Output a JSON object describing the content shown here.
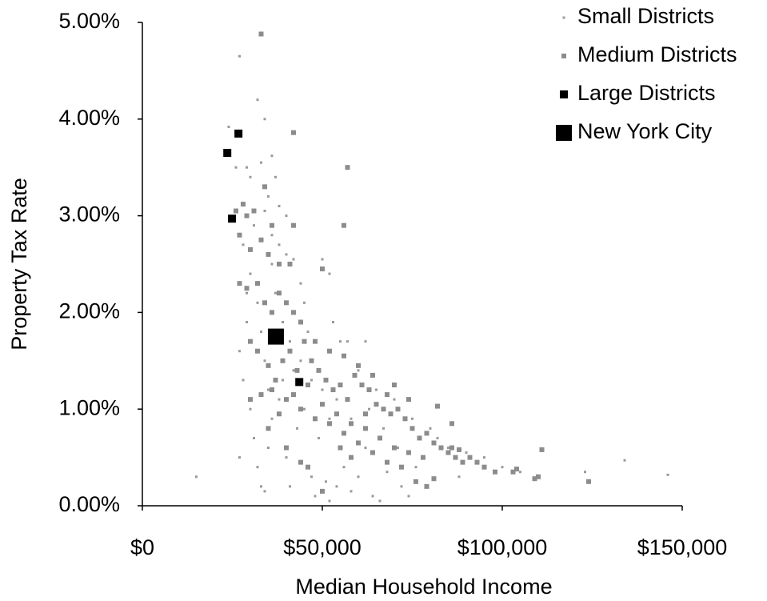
{
  "chart_data": {
    "type": "scatter",
    "x_label": "Median Household Income",
    "y_label": "Property Tax Rate",
    "xlim": [
      0,
      150000
    ],
    "xticks": [
      {
        "value": 0,
        "label": "$0"
      },
      {
        "value": 50000,
        "label": "$50,000"
      },
      {
        "value": 100000,
        "label": "$100,000"
      },
      {
        "value": 150000,
        "label": "$150,000"
      }
    ],
    "ylim": [
      0,
      5
    ],
    "yticks": [
      {
        "value": 0,
        "label": "0.00%"
      },
      {
        "value": 1,
        "label": "1.00%"
      },
      {
        "value": 2,
        "label": "2.00%"
      },
      {
        "value": 3,
        "label": "3.00%"
      },
      {
        "value": 4,
        "label": "4.00%"
      },
      {
        "value": 5,
        "label": "5.00%"
      }
    ],
    "legend": "upper right",
    "series": [
      {
        "name": "Small Districts",
        "color": "#999999",
        "x": [
          15000,
          27000,
          32000,
          24000,
          26000,
          29000,
          30000,
          33000,
          36000,
          37000,
          35000,
          34000,
          31000,
          36000,
          38000,
          40000,
          42000,
          44000,
          45000,
          50000,
          52000,
          55000,
          53000,
          57000,
          62000,
          60000,
          65000,
          70000,
          75000,
          80000,
          85000,
          90000,
          100000,
          105000,
          110000,
          123000,
          134000,
          146000,
          27000,
          29000,
          27000,
          28000,
          30000,
          31000,
          32000,
          33000,
          34000,
          35000,
          36000,
          38000,
          39000,
          40000,
          41000,
          43000,
          44000,
          46000,
          47000,
          48000,
          49000,
          51000,
          52000,
          54000,
          56000,
          58000,
          60000,
          62000,
          64000,
          66000,
          68000,
          72000,
          74000,
          78000,
          82000,
          88000,
          95000,
          30000,
          32000,
          33000,
          34000,
          35000,
          36000,
          37000,
          39000,
          41000,
          42000,
          45000,
          47000,
          50000,
          52000,
          54000,
          58000,
          63000,
          67000,
          71000,
          76000,
          28000,
          29000,
          40000,
          38000,
          34000
        ],
        "values": [
          0.3,
          4.65,
          4.2,
          3.92,
          3.5,
          3.5,
          3.4,
          3.55,
          3.62,
          3.4,
          3.2,
          3.05,
          2.9,
          2.8,
          2.7,
          2.6,
          2.55,
          2.3,
          2.1,
          2.55,
          2.4,
          1.7,
          1.9,
          1.7,
          1.7,
          1.4,
          1.2,
          1.1,
          0.9,
          0.8,
          0.6,
          0.55,
          0.4,
          0.35,
          0.3,
          0.35,
          0.47,
          0.32,
          0.5,
          1.9,
          1.6,
          1.3,
          1.0,
          0.7,
          0.4,
          0.2,
          0.15,
          0.6,
          0.9,
          1.1,
          1.3,
          0.5,
          0.2,
          0.8,
          1.5,
          1.8,
          0.3,
          0.1,
          0.7,
          0.25,
          0.05,
          0.2,
          0.4,
          0.15,
          0.3,
          0.6,
          0.1,
          0.05,
          0.35,
          0.2,
          0.1,
          0.5,
          0.7,
          0.3,
          0.5,
          2.4,
          2.1,
          1.8,
          1.5,
          1.2,
          2.5,
          2.2,
          1.9,
          1.7,
          1.4,
          1.0,
          1.3,
          1.2,
          0.9,
          1.1,
          0.9,
          1.0,
          0.8,
          0.6,
          0.4,
          2.7,
          2.2,
          3.0,
          3.1,
          4.0
        ]
      },
      {
        "name": "Medium Districts",
        "color": "#8c8c8c",
        "x": [
          33000,
          42000,
          57000,
          56000,
          42000,
          36000,
          34000,
          31000,
          28000,
          29000,
          26000,
          27000,
          33000,
          35000,
          38000,
          41000,
          50000,
          30000,
          29000,
          32000,
          34000,
          36000,
          38000,
          40000,
          42000,
          44000,
          27000,
          30000,
          32000,
          35000,
          37000,
          39000,
          41000,
          43000,
          45000,
          47000,
          49000,
          51000,
          53000,
          55000,
          57000,
          59000,
          61000,
          63000,
          65000,
          67000,
          69000,
          71000,
          73000,
          75000,
          77000,
          79000,
          81000,
          83000,
          85000,
          87000,
          89000,
          91000,
          93000,
          95000,
          103000,
          104000,
          110000,
          111000,
          124000,
          109000,
          81000,
          79000,
          76000,
          72000,
          68000,
          64000,
          60000,
          56000,
          52000,
          48000,
          44000,
          40000,
          36000,
          33000,
          30000,
          35000,
          40000,
          44000,
          50000,
          46000,
          55000,
          58000,
          62000,
          66000,
          70000,
          74000,
          78000,
          82000,
          86000,
          88000,
          68000,
          64000,
          60000,
          56000,
          52000,
          48000,
          46000,
          42000,
          38000,
          50000,
          54000,
          58000,
          62000,
          70000,
          74000,
          86000,
          98000
        ],
        "values": [
          4.88,
          3.86,
          3.5,
          2.9,
          2.9,
          2.9,
          3.3,
          3.05,
          3.12,
          3.0,
          3.05,
          2.8,
          2.75,
          2.6,
          2.5,
          2.5,
          2.45,
          2.65,
          2.25,
          2.3,
          2.1,
          2.0,
          2.2,
          2.1,
          2.0,
          1.9,
          2.3,
          1.7,
          1.6,
          1.45,
          1.3,
          1.5,
          1.6,
          1.4,
          1.7,
          1.5,
          1.4,
          1.3,
          1.2,
          1.25,
          1.1,
          1.35,
          1.25,
          1.2,
          1.05,
          1.0,
          0.95,
          1.0,
          0.9,
          0.8,
          0.7,
          0.75,
          0.65,
          0.6,
          0.55,
          0.5,
          0.45,
          0.5,
          0.45,
          0.4,
          0.35,
          0.38,
          0.3,
          0.58,
          0.25,
          0.28,
          0.28,
          0.2,
          0.25,
          0.4,
          0.45,
          0.55,
          0.65,
          0.75,
          0.85,
          0.9,
          1.0,
          1.1,
          1.2,
          1.15,
          1.1,
          0.8,
          0.6,
          0.45,
          0.15,
          0.4,
          0.6,
          0.5,
          0.8,
          0.7,
          0.6,
          0.55,
          0.5,
          1.03,
          0.85,
          0.58,
          1.15,
          1.35,
          1.45,
          1.55,
          1.6,
          1.7,
          1.25,
          1.15,
          0.95,
          1.05,
          0.95,
          0.85,
          0.95,
          1.25,
          1.1,
          0.6,
          0.35
        ]
      },
      {
        "name": "Large Districts",
        "color": "#000000",
        "x": [
          23600,
          26700,
          24900,
          43600
        ],
        "values": [
          3.65,
          3.85,
          2.97,
          1.28
        ]
      },
      {
        "name": "New York City",
        "color": "#000000",
        "x": [
          37100
        ],
        "values": [
          1.75
        ]
      }
    ]
  }
}
